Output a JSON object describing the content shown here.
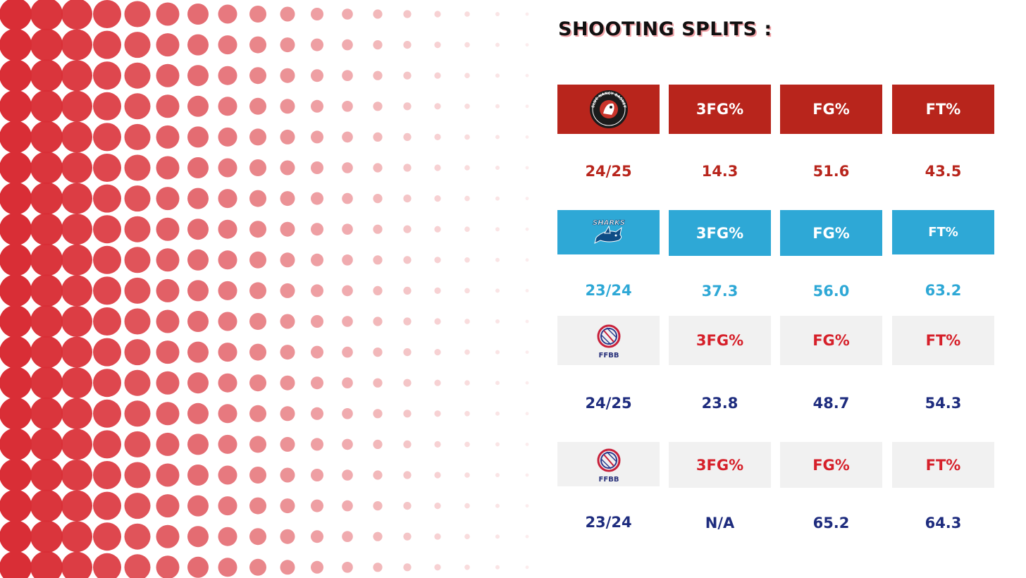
{
  "title": "SHOOTING SPLITS :",
  "colors": {
    "dots": "#d92e36",
    "nancy_red": "#b8251c",
    "sharks_blue": "#2ea8d6",
    "ffbb_red": "#d6202a",
    "ffbb_navy": "#1e2c7e",
    "header_grey": "#f1f1f1"
  },
  "logos": {
    "nancy_text": "SLUC NANCY BASKET",
    "sharks_text": "SHARKS",
    "ffbb_text": "FFBB"
  },
  "chart_data": {
    "type": "table",
    "title": "SHOOTING SPLITS :",
    "columns": [
      "3FG%",
      "FG%",
      "FT%"
    ],
    "rows": [
      {
        "team_logo": "nancy-logo",
        "season": "24/25",
        "values": [
          "14.3",
          "51.6",
          "43.5"
        ]
      },
      {
        "team_logo": "sharks-logo",
        "season": "23/24",
        "values": [
          "37.3",
          "56.0",
          "63.2"
        ]
      },
      {
        "team_logo": "ffbb-logo",
        "season": "24/25",
        "values": [
          "23.8",
          "48.7",
          "54.3"
        ]
      },
      {
        "team_logo": "ffbb-logo",
        "season": "23/24",
        "values": [
          "N/A",
          "65.2",
          "64.3"
        ]
      }
    ]
  }
}
